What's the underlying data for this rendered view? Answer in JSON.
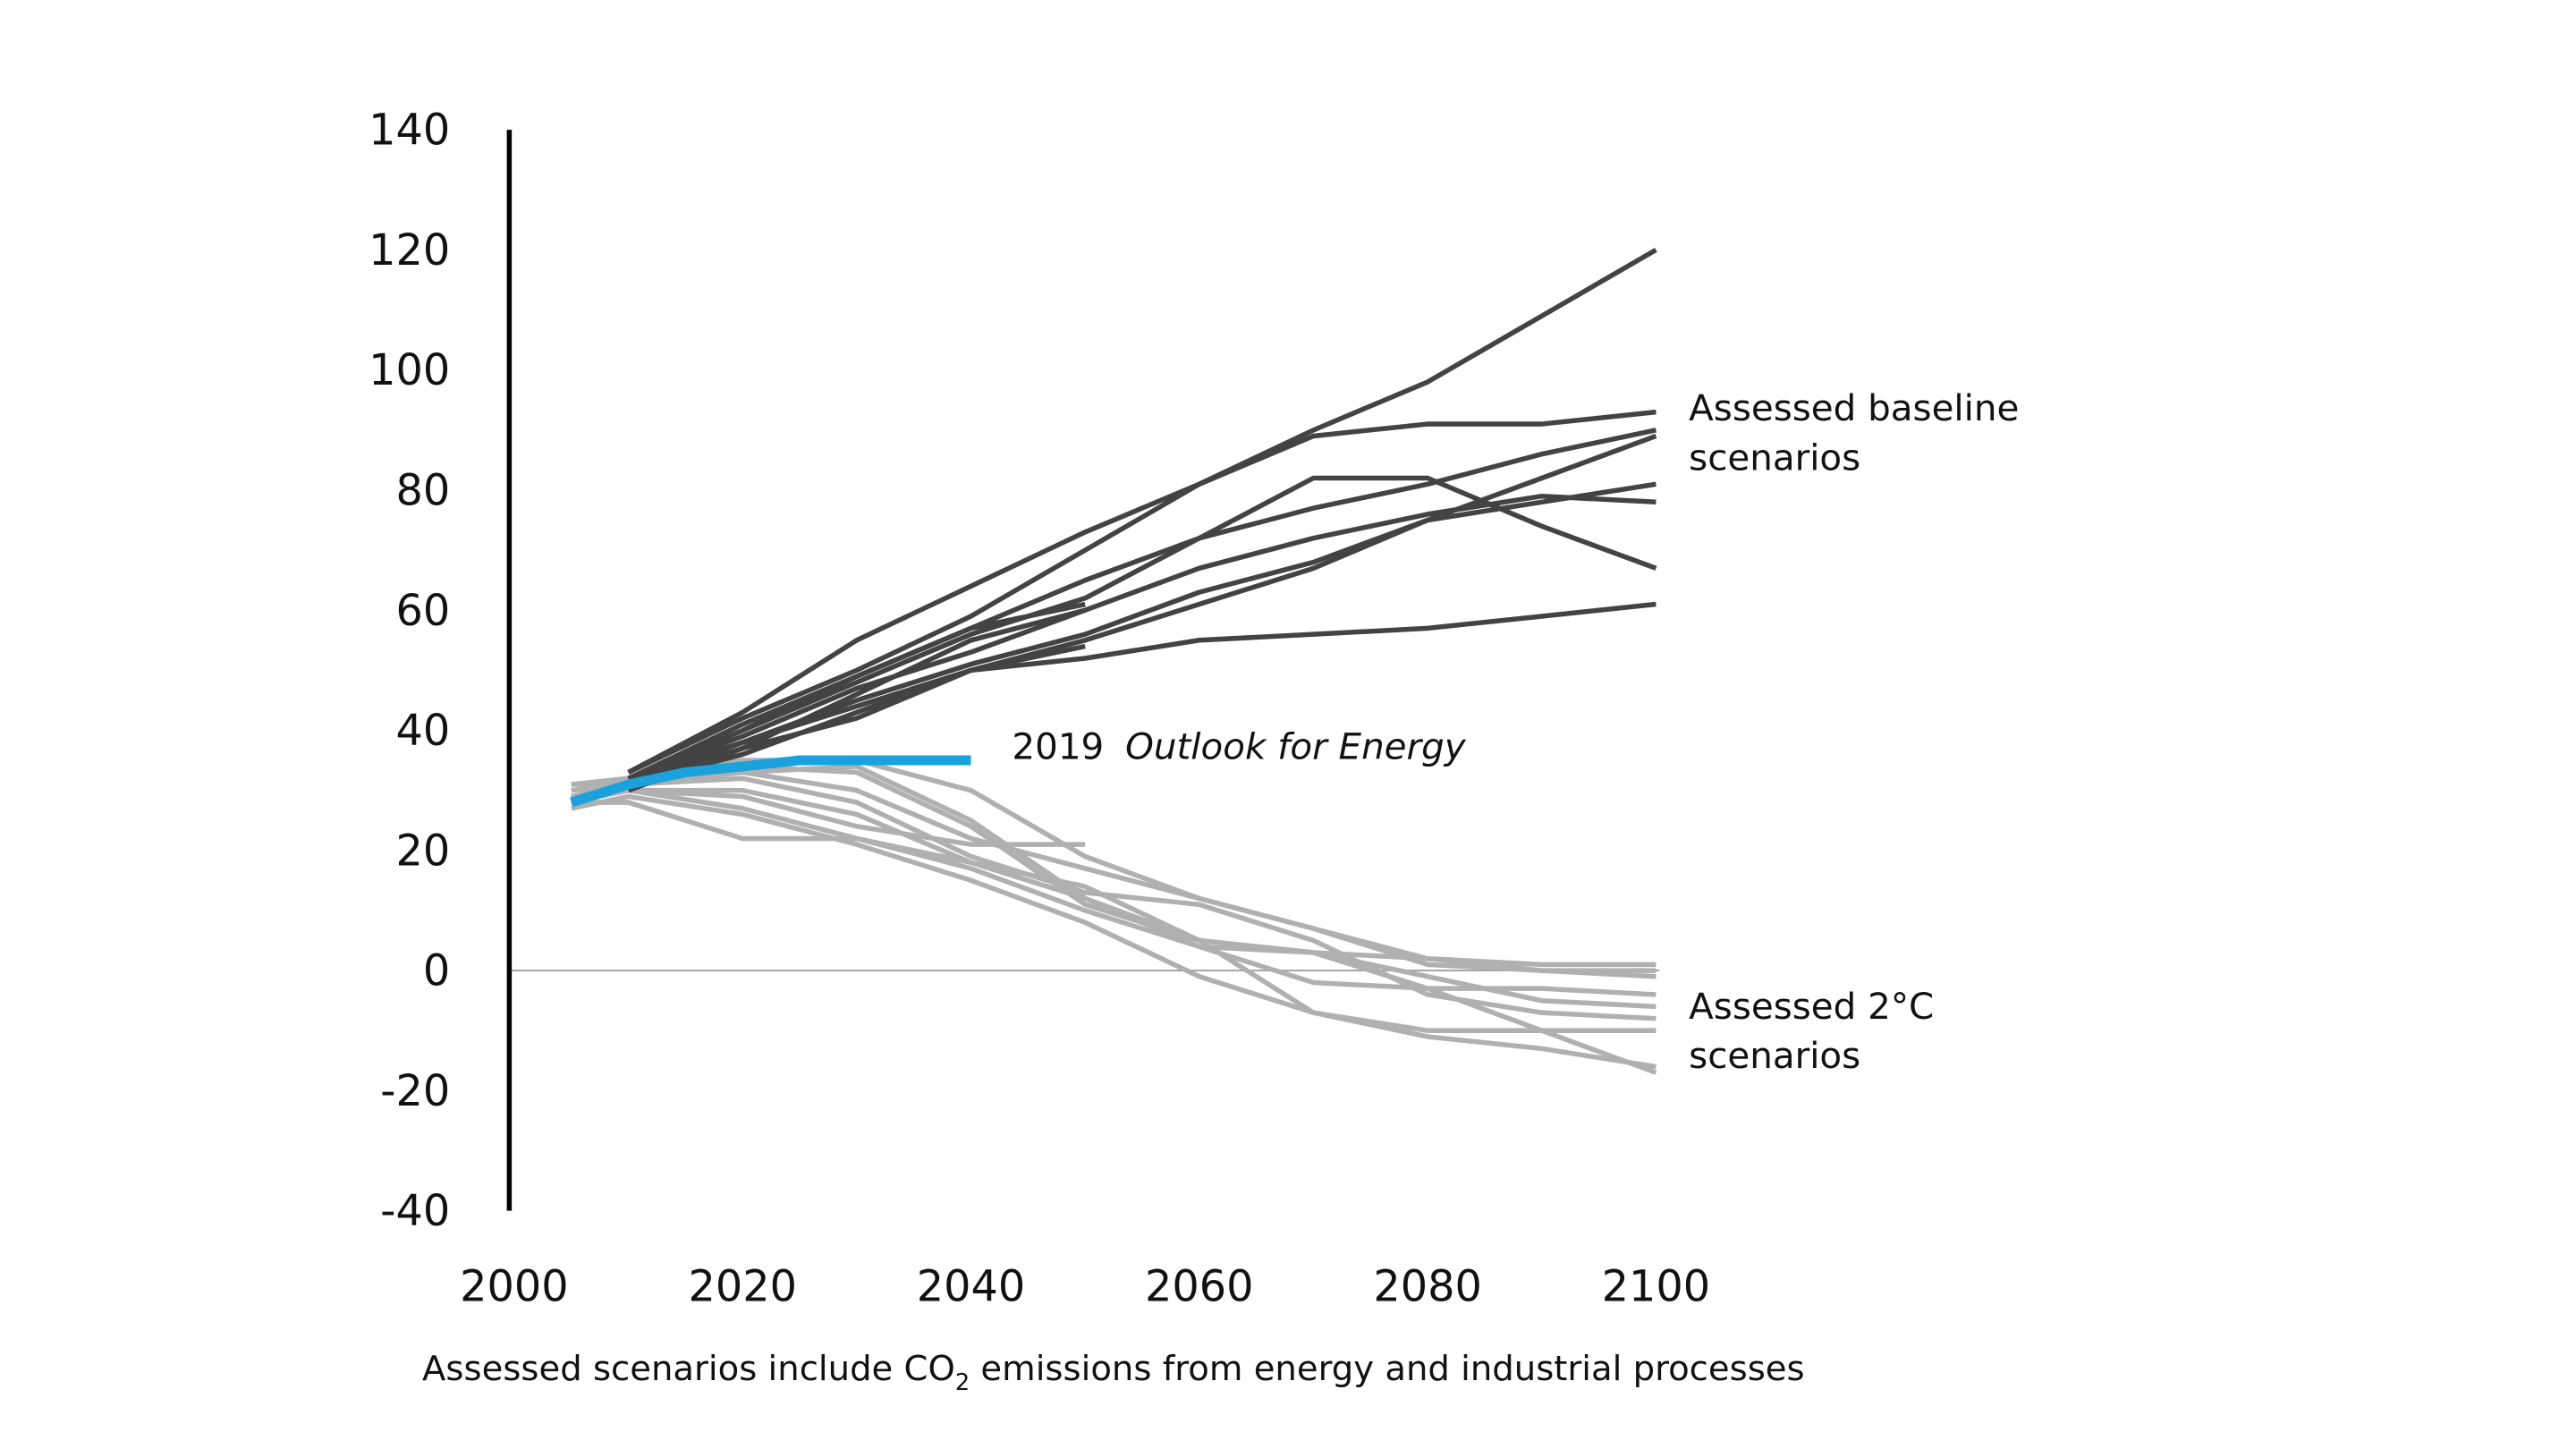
{
  "chart_data": {
    "type": "line",
    "title": "",
    "xlabel": "Assessed scenarios include CO2 emissions from energy and industrial processes",
    "xlabel_parts": {
      "before": "Assessed scenarios include CO",
      "subscript": "2",
      "after": " emissions from energy and industrial processes"
    },
    "ylabel": "",
    "xlim": [
      2000,
      2100
    ],
    "ylim": [
      -40,
      140
    ],
    "x_ticks": [
      "2000",
      "2020",
      "2040",
      "2060",
      "2080",
      "2100"
    ],
    "y_ticks": [
      "140",
      "120",
      "100",
      "80",
      "60",
      "40",
      "20",
      "0",
      "-20",
      "-40"
    ],
    "grid": false,
    "colors": {
      "baseline": "#434343",
      "two_degree": "#b0b0b0",
      "outlook": "#1ba1dc",
      "zero_line": "#a0a0a0"
    },
    "annotations": {
      "baseline_line1": "Assessed baseline",
      "baseline_line2": "scenarios",
      "two_degree_line1": "Assessed 2°C",
      "two_degree_line2": "scenarios",
      "outlook_year": "2019",
      "outlook_name": "Outlook for Energy"
    },
    "baseline_series": [
      {
        "x": [
          2010,
          2020,
          2030,
          2040,
          2050,
          2060,
          2070,
          2080,
          2090,
          2100
        ],
        "y": [
          33,
          43,
          55,
          64,
          73,
          81,
          90,
          98,
          109,
          120
        ]
      },
      {
        "x": [
          2010,
          2020,
          2030,
          2040,
          2050,
          2060,
          2070,
          2080,
          2090,
          2100
        ],
        "y": [
          33,
          42,
          50,
          59,
          70,
          81,
          89,
          91,
          91,
          93
        ]
      },
      {
        "x": [
          2010,
          2020,
          2030,
          2040,
          2050,
          2060,
          2070,
          2080,
          2090,
          2100
        ],
        "y": [
          32,
          40,
          49,
          57,
          65,
          72,
          77,
          81,
          86,
          90
        ]
      },
      {
        "x": [
          2010,
          2020,
          2030,
          2040,
          2050,
          2060,
          2070,
          2080,
          2090,
          2100
        ],
        "y": [
          32,
          38,
          45,
          51,
          56,
          63,
          68,
          75,
          82,
          89
        ]
      },
      {
        "x": [
          2010,
          2020,
          2030,
          2040,
          2050,
          2060,
          2070,
          2080,
          2090,
          2100
        ],
        "y": [
          32,
          40,
          48,
          56,
          62,
          72,
          82,
          82,
          74,
          67
        ]
      },
      {
        "x": [
          2010,
          2020,
          2030,
          2040,
          2050,
          2060,
          2070,
          2080,
          2090,
          2100
        ],
        "y": [
          32,
          39,
          47,
          53,
          60,
          67,
          72,
          76,
          79,
          78
        ]
      },
      {
        "x": [
          2010,
          2020,
          2030,
          2040,
          2050,
          2060,
          2070,
          2080,
          2090,
          2100
        ],
        "y": [
          31,
          38,
          44,
          50,
          55,
          61,
          67,
          75,
          78,
          81
        ]
      },
      {
        "x": [
          2010,
          2020,
          2030,
          2040,
          2050,
          2060,
          2070,
          2080,
          2090,
          2100
        ],
        "y": [
          31,
          37,
          42,
          50,
          52,
          55,
          56,
          57,
          59,
          61
        ]
      },
      {
        "x": [
          2010,
          2020,
          2030,
          2040,
          2050
        ],
        "y": [
          32,
          41,
          49,
          57,
          61
        ]
      },
      {
        "x": [
          2010,
          2020,
          2030,
          2040,
          2050
        ],
        "y": [
          31,
          36,
          43,
          50,
          54
        ]
      },
      {
        "x": [
          2010,
          2020,
          2030,
          2040,
          2050
        ],
        "y": [
          30,
          37,
          46,
          55,
          60
        ]
      }
    ],
    "two_degree_series": [
      {
        "x": [
          2005,
          2010,
          2020,
          2030,
          2040,
          2050,
          2060,
          2070,
          2080,
          2090,
          2100
        ],
        "y": [
          31,
          32,
          35,
          35,
          30,
          19,
          12,
          7,
          1,
          0,
          0
        ]
      },
      {
        "x": [
          2005,
          2010,
          2020,
          2030,
          2040,
          2050,
          2060,
          2070,
          2080,
          2090,
          2100
        ],
        "y": [
          30,
          31,
          33,
          30,
          22,
          17,
          12,
          7,
          2,
          1,
          1
        ]
      },
      {
        "x": [
          2005,
          2010,
          2020,
          2030,
          2040,
          2050
        ],
        "y": [
          29,
          30,
          29,
          24,
          21,
          21
        ]
      },
      {
        "x": [
          2005,
          2010,
          2020,
          2030,
          2040,
          2050,
          2060,
          2070,
          2080,
          2090,
          2100
        ],
        "y": [
          28,
          28,
          22,
          22,
          17,
          10,
          4,
          3,
          -3,
          -10,
          -17
        ]
      },
      {
        "x": [
          2005,
          2010,
          2020,
          2030,
          2040,
          2050,
          2060,
          2070,
          2080,
          2090,
          2100
        ],
        "y": [
          27,
          29,
          26,
          21,
          15,
          8,
          -1,
          -7,
          -10,
          -10,
          -10
        ]
      },
      {
        "x": [
          2005,
          2010,
          2020,
          2030,
          2040,
          2050,
          2060,
          2070,
          2080,
          2090,
          2100
        ],
        "y": [
          29,
          30,
          27,
          22,
          18,
          12,
          5,
          3,
          -1,
          -5,
          -6
        ]
      },
      {
        "x": [
          2005,
          2010,
          2020,
          2030,
          2040,
          2050,
          2060,
          2070,
          2080,
          2090,
          2100
        ],
        "y": [
          30,
          31,
          32,
          28,
          19,
          13,
          11,
          5,
          -4,
          -7,
          -8
        ]
      },
      {
        "x": [
          2005,
          2010,
          2020,
          2030,
          2040,
          2050,
          2060,
          2070,
          2080,
          2090,
          2100
        ],
        "y": [
          29,
          31,
          33,
          34,
          25,
          12,
          4,
          -2,
          -3,
          -3,
          -4
        ]
      },
      {
        "x": [
          2005,
          2010,
          2020,
          2030,
          2040,
          2050,
          2060,
          2070,
          2080,
          2090,
          2100
        ],
        "y": [
          28,
          30,
          30,
          26,
          18,
          14,
          5,
          -7,
          -11,
          -13,
          -16
        ]
      },
      {
        "x": [
          2005,
          2010,
          2020,
          2030,
          2040,
          2050,
          2060,
          2070,
          2080,
          2090,
          2100
        ],
        "y": [
          31,
          31,
          34,
          33,
          24,
          11,
          5,
          3,
          2,
          0,
          -1
        ]
      }
    ],
    "outlook_series": {
      "x": [
        2005,
        2010,
        2015,
        2020,
        2025,
        2030,
        2040
      ],
      "y": [
        28,
        31,
        33,
        34,
        35,
        35,
        35
      ]
    }
  }
}
